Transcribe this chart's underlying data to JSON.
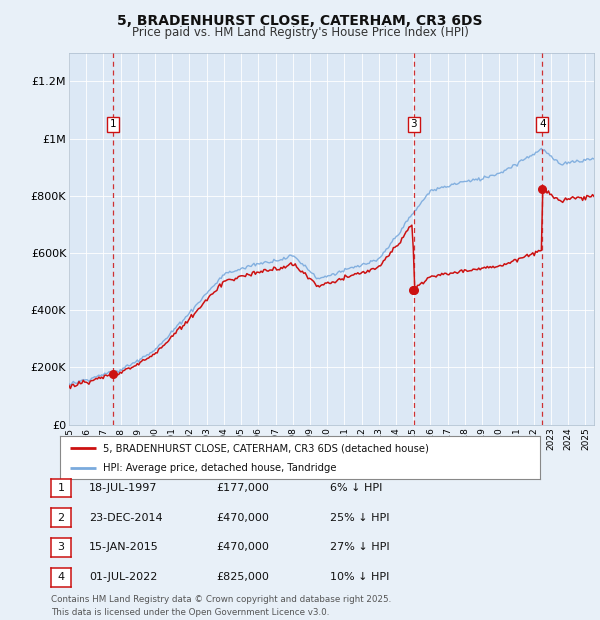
{
  "title": "5, BRADENHURST CLOSE, CATERHAM, CR3 6DS",
  "subtitle": "Price paid vs. HM Land Registry's House Price Index (HPI)",
  "background_color": "#e8f0f8",
  "plot_bg_color": "#dce8f5",
  "grid_color": "#c8d8ec",
  "hpi_line_color": "#7aaadd",
  "price_line_color": "#cc1111",
  "yticks": [
    0,
    200000,
    400000,
    600000,
    800000,
    1000000,
    1200000
  ],
  "ytick_labels": [
    "£0",
    "£200K",
    "£400K",
    "£600K",
    "£800K",
    "£1M",
    "£1.2M"
  ],
  "xmin": 1995.0,
  "xmax": 2025.5,
  "ymin": 0,
  "ymax": 1300000,
  "transactions": [
    {
      "num": 1,
      "date": "18-JUL-1997",
      "price": 177000,
      "year": 1997.55,
      "pct": "6%",
      "dir": "↓"
    },
    {
      "num": 2,
      "date": "23-DEC-2014",
      "price": 470000,
      "year": 2014.98,
      "pct": "25%",
      "dir": "↓"
    },
    {
      "num": 3,
      "date": "15-JAN-2015",
      "price": 470000,
      "year": 2015.04,
      "pct": "27%",
      "dir": "↓"
    },
    {
      "num": 4,
      "date": "01-JUL-2022",
      "price": 825000,
      "year": 2022.5,
      "pct": "10%",
      "dir": "↓"
    }
  ],
  "shown_vlines": [
    1,
    3,
    4
  ],
  "legend_label_red": "5, BRADENHURST CLOSE, CATERHAM, CR3 6DS (detached house)",
  "legend_label_blue": "HPI: Average price, detached house, Tandridge",
  "footer": "Contains HM Land Registry data © Crown copyright and database right 2025.\nThis data is licensed under the Open Government Licence v3.0."
}
